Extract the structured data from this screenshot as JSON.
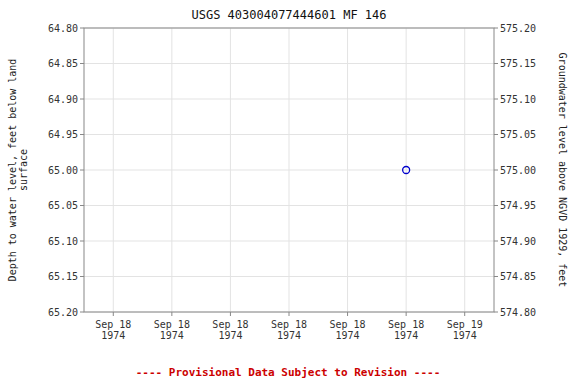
{
  "chart_data": {
    "type": "scatter",
    "title": "USGS 403004077444601 MF   146",
    "y_label": "Depth to water level, feet below land\nsurface",
    "y2_label": "Groundwater level above NGVD 1929, feet",
    "categories": [
      "Sep 18\n1974",
      "Sep 18\n1974",
      "Sep 18\n1974",
      "Sep 18\n1974",
      "Sep 18\n1974",
      "Sep 18\n1974",
      "Sep 19\n1974"
    ],
    "series": [
      {
        "color": "#0000cc",
        "marker": "open-circle",
        "values": [
          null,
          null,
          null,
          null,
          null,
          65.0,
          null
        ]
      }
    ],
    "ylim": [
      65.2,
      64.8
    ],
    "yticks": [
      {
        "value": 64.8,
        "label": "64.80"
      },
      {
        "value": 64.85,
        "label": "64.85"
      },
      {
        "value": 64.9,
        "label": "64.90"
      },
      {
        "value": 64.95,
        "label": "64.95"
      },
      {
        "value": 65.0,
        "label": "65.00"
      },
      {
        "value": 65.05,
        "label": "65.05"
      },
      {
        "value": 65.1,
        "label": "65.10"
      },
      {
        "value": 65.15,
        "label": "65.15"
      },
      {
        "value": 65.2,
        "label": "65.20"
      }
    ],
    "y2lim": [
      574.8,
      575.2
    ],
    "y2ticks": [
      {
        "value": 575.2,
        "label": "575.20"
      },
      {
        "value": 575.15,
        "label": "575.15"
      },
      {
        "value": 575.1,
        "label": "575.10"
      },
      {
        "value": 575.05,
        "label": "575.05"
      },
      {
        "value": 575.0,
        "label": "575.00"
      },
      {
        "value": 574.95,
        "label": "574.95"
      },
      {
        "value": 574.9,
        "label": "574.90"
      },
      {
        "value": 574.85,
        "label": "574.85"
      },
      {
        "value": 574.8,
        "label": "574.80"
      }
    ],
    "grid": true,
    "annotations": [
      {
        "text": "---- Provisional Data Subject to Revision ----",
        "color": "#cc0000"
      }
    ]
  }
}
